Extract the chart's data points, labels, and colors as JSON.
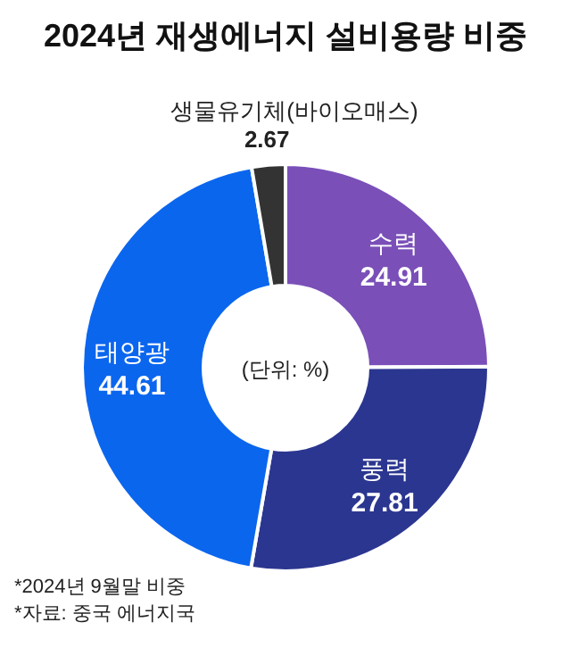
{
  "chart_data": {
    "type": "donut",
    "title": "2024년 재생에너지 설비용량 비중",
    "categories": [
      "수력",
      "풍력",
      "태양광",
      "생물유기체(바이오매스)"
    ],
    "values": [
      24.91,
      27.81,
      44.61,
      2.67
    ],
    "colors": [
      "#7a4fb8",
      "#2b3690",
      "#0b66ee",
      "#333333"
    ],
    "data_labels": true,
    "annotations": [
      "(단위: %)",
      "*2024년 9월말 비중",
      "*자료: 중국 에너지국"
    ]
  }
}
